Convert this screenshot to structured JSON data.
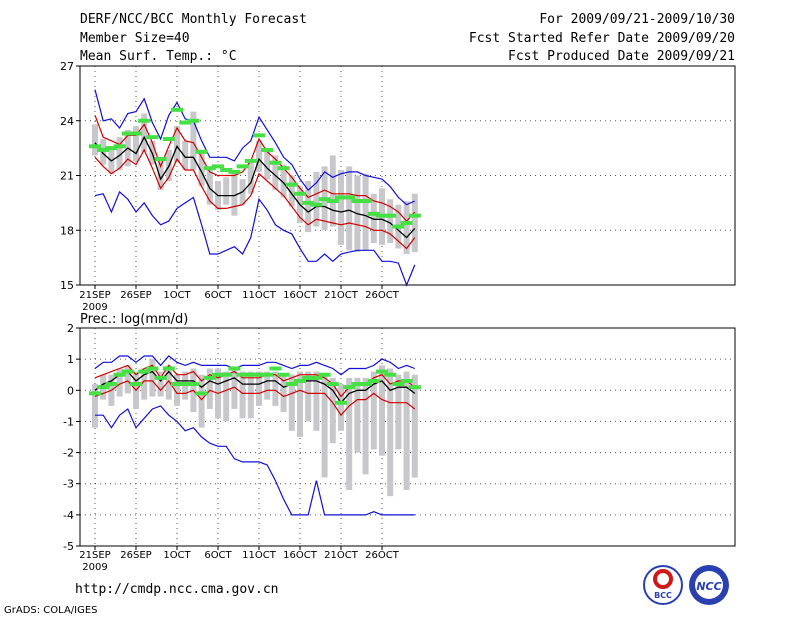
{
  "header": {
    "title": "DERF/NCC/BCC Monthly Forecast",
    "member_size": "Member Size=40",
    "variable": "Mean Surf. Temp.: °C",
    "period": "For 2009/09/21-2009/10/30",
    "fcst_started": "Fcst Started Refer Date 2009/09/20",
    "fcst_produced": "Fcst Produced Date 2009/09/21"
  },
  "footer": {
    "url": "http://cmdp.ncc.cma.gov.cn",
    "grads": "GrADS: COLA/IGES",
    "logo1_text": "BCC",
    "logo2_text": "NCC"
  },
  "colors": {
    "box": "#c8c8cc",
    "median": "#44e044",
    "envelope": "#1010d8",
    "spread": "#d00000",
    "mean": "#000000"
  },
  "chart_data": [
    {
      "type": "line",
      "title": "Mean Surf. Temp.: °C",
      "ylim": [
        15,
        27
      ],
      "yticks": [
        15,
        18,
        21,
        24,
        27
      ],
      "ytick_labels": [
        "15",
        "18",
        "21",
        "24",
        "27"
      ],
      "xtick_labels": [
        "21SEP",
        "26SEP",
        "1OCT",
        "6OCT",
        "11OCT",
        "16OCT",
        "21OCT",
        "26OCT"
      ],
      "xtick_days": [
        0,
        5,
        10,
        15,
        20,
        25,
        30,
        35
      ],
      "x_sublabel": "2009",
      "days": 40,
      "series": [
        {
          "name": "ensemble max",
          "values": [
            25.7,
            24.0,
            24.1,
            23.6,
            24.4,
            24.5,
            25.2,
            23.9,
            23.0,
            24.3,
            25.0,
            24.1,
            24.0,
            22.9,
            22.0,
            22.0,
            22.0,
            21.8,
            22.5,
            22.9,
            24.2,
            23.5,
            22.8,
            22.0,
            21.6,
            20.8,
            20.2,
            20.6,
            21.2,
            20.9,
            21.1,
            21.2,
            21.2,
            21.0,
            20.9,
            20.8,
            20.4,
            19.8,
            19.4,
            19.6
          ]
        },
        {
          "name": "upper spread",
          "values": [
            24.3,
            23.1,
            22.9,
            22.7,
            23.2,
            23.2,
            23.8,
            22.8,
            21.5,
            22.6,
            23.6,
            22.9,
            22.8,
            22.0,
            21.2,
            21.0,
            21.0,
            21.0,
            21.2,
            21.8,
            23.0,
            22.3,
            21.9,
            21.4,
            20.9,
            20.3,
            19.8,
            20.0,
            20.2,
            20.0,
            20.0,
            20.0,
            19.9,
            19.9,
            19.6,
            19.5,
            19.3,
            19.0,
            18.5,
            19.0
          ]
        },
        {
          "name": "ensemble mean",
          "values": [
            22.8,
            22.2,
            21.8,
            22.1,
            22.5,
            22.2,
            23.1,
            22.2,
            20.8,
            21.5,
            22.6,
            22.0,
            22.0,
            21.2,
            20.3,
            19.9,
            19.9,
            19.9,
            20.1,
            20.6,
            21.9,
            21.4,
            21.0,
            20.6,
            20.0,
            19.4,
            19.0,
            19.3,
            19.3,
            19.1,
            19.0,
            19.1,
            18.9,
            18.8,
            18.6,
            18.6,
            18.4,
            18.0,
            17.6,
            18.1
          ]
        },
        {
          "name": "lower spread",
          "values": [
            22.0,
            21.5,
            21.1,
            21.4,
            21.9,
            21.6,
            22.4,
            21.4,
            20.3,
            20.9,
            21.9,
            21.3,
            21.3,
            20.4,
            19.6,
            19.2,
            19.2,
            19.3,
            19.4,
            19.9,
            21.1,
            20.7,
            20.3,
            19.9,
            19.3,
            18.7,
            18.3,
            18.6,
            18.5,
            18.4,
            18.3,
            18.4,
            18.3,
            18.2,
            18.0,
            18.0,
            17.8,
            17.4,
            17.0,
            17.6
          ]
        },
        {
          "name": "ensemble min",
          "values": [
            19.9,
            20.0,
            19.0,
            20.1,
            19.7,
            19.0,
            19.5,
            18.8,
            18.3,
            18.5,
            19.2,
            19.5,
            19.8,
            18.3,
            16.7,
            16.7,
            16.9,
            17.1,
            16.7,
            17.6,
            19.7,
            19.1,
            18.3,
            18.0,
            17.8,
            17.0,
            16.3,
            16.3,
            16.7,
            16.3,
            16.7,
            16.8,
            16.9,
            16.9,
            16.9,
            16.3,
            16.3,
            16.2,
            15.0,
            16.1
          ]
        },
        {
          "name": "median",
          "values": [
            22.6,
            22.4,
            22.5,
            22.6,
            23.3,
            23.3,
            24.0,
            23.1,
            21.9,
            23.0,
            24.6,
            23.9,
            24.0,
            22.3,
            21.4,
            21.5,
            21.3,
            21.2,
            21.5,
            21.8,
            23.2,
            22.4,
            21.7,
            21.4,
            20.5,
            20.0,
            19.5,
            19.4,
            19.7,
            19.6,
            19.8,
            19.8,
            19.6,
            19.6,
            18.9,
            18.8,
            18.8,
            18.2,
            18.4,
            18.8
          ]
        },
        {
          "name": "box top",
          "values": [
            23.8,
            23.0,
            22.6,
            23.1,
            23.5,
            23.7,
            24.4,
            22.9,
            21.8,
            22.4,
            23.7,
            22.9,
            24.5,
            22.3,
            21.3,
            20.7,
            20.9,
            21.2,
            20.8,
            21.9,
            22.9,
            22.5,
            22.1,
            21.6,
            21.0,
            20.4,
            20.7,
            21.2,
            21.5,
            22.1,
            21.3,
            21.5,
            21.0,
            21.1,
            20.0,
            20.3,
            19.7,
            19.4,
            19.6,
            20.0
          ]
        },
        {
          "name": "box bottom",
          "values": [
            22.1,
            21.6,
            21.1,
            21.3,
            21.5,
            21.8,
            22.3,
            21.6,
            20.2,
            20.7,
            21.7,
            21.3,
            21.3,
            20.4,
            19.4,
            19.1,
            19.4,
            18.8,
            19.4,
            20.0,
            21.2,
            20.8,
            20.2,
            19.8,
            19.3,
            18.4,
            17.9,
            18.2,
            18.0,
            18.2,
            17.2,
            16.9,
            16.8,
            16.9,
            17.3,
            17.2,
            17.3,
            17.0,
            16.7,
            16.8
          ]
        }
      ]
    },
    {
      "type": "line",
      "title": "Prec.: log(mm/d)",
      "ylim": [
        -5,
        2
      ],
      "yticks": [
        -5,
        -4,
        -3,
        -2,
        -1,
        0,
        1,
        2
      ],
      "ytick_labels": [
        "-5",
        "-4",
        "-3",
        "-2",
        "-1",
        "0",
        "1",
        "2"
      ],
      "xtick_labels": [
        "21SEP",
        "26SEP",
        "1OCT",
        "6OCT",
        "11OCT",
        "16OCT",
        "21OCT",
        "26OCT"
      ],
      "xtick_days": [
        0,
        5,
        10,
        15,
        20,
        25,
        30,
        35
      ],
      "x_sublabel": "2009",
      "days": 40,
      "series": [
        {
          "name": "ensemble max",
          "values": [
            0.7,
            0.9,
            0.9,
            1.1,
            1.1,
            0.9,
            1.1,
            1.1,
            0.8,
            1.1,
            0.9,
            0.8,
            0.9,
            0.8,
            0.8,
            0.8,
            0.8,
            0.7,
            0.8,
            0.8,
            0.8,
            0.9,
            0.9,
            0.8,
            0.7,
            0.8,
            0.8,
            0.9,
            0.8,
            0.7,
            0.5,
            0.7,
            0.7,
            0.7,
            0.8,
            1.0,
            0.9,
            0.7,
            0.8,
            0.7
          ]
        },
        {
          "name": "upper spread",
          "values": [
            0.4,
            0.5,
            0.6,
            0.7,
            0.8,
            0.5,
            0.7,
            0.8,
            0.4,
            0.8,
            0.5,
            0.5,
            0.6,
            0.3,
            0.5,
            0.4,
            0.5,
            0.6,
            0.4,
            0.4,
            0.4,
            0.5,
            0.5,
            0.3,
            0.4,
            0.5,
            0.5,
            0.5,
            0.4,
            0.2,
            -0.2,
            0.1,
            0.2,
            0.2,
            0.4,
            0.5,
            0.2,
            0.3,
            0.3,
            0.1
          ]
        },
        {
          "name": "ensemble mean",
          "values": [
            0.0,
            0.2,
            0.3,
            0.5,
            0.6,
            0.3,
            0.5,
            0.6,
            0.3,
            0.6,
            0.3,
            0.3,
            0.3,
            0.1,
            0.3,
            0.2,
            0.3,
            0.4,
            0.2,
            0.2,
            0.2,
            0.3,
            0.3,
            0.1,
            0.2,
            0.3,
            0.3,
            0.3,
            0.2,
            0.0,
            -0.4,
            -0.1,
            0.0,
            0.0,
            0.2,
            0.3,
            0.0,
            0.1,
            0.1,
            -0.1
          ]
        },
        {
          "name": "lower spread",
          "values": [
            -0.2,
            -0.1,
            0.0,
            0.2,
            0.3,
            0.0,
            0.3,
            0.3,
            0.0,
            0.3,
            -0.1,
            -0.1,
            0.0,
            -0.3,
            0.0,
            -0.1,
            0.0,
            0.1,
            -0.1,
            -0.1,
            -0.1,
            0.0,
            0.0,
            -0.2,
            -0.1,
            0.0,
            -0.1,
            -0.1,
            -0.1,
            -0.4,
            -0.8,
            -0.5,
            -0.3,
            -0.3,
            -0.1,
            -0.3,
            -0.4,
            -0.4,
            -0.4,
            -0.6
          ]
        },
        {
          "name": "ensemble min",
          "values": [
            -0.8,
            -0.8,
            -1.2,
            -0.8,
            -0.6,
            -1.2,
            -0.9,
            -0.6,
            -0.5,
            -0.8,
            -1.0,
            -1.3,
            -1.2,
            -1.5,
            -1.7,
            -1.8,
            -1.8,
            -2.2,
            -2.3,
            -2.3,
            -2.3,
            -2.4,
            -2.9,
            -3.5,
            -4.0,
            -4.0,
            -4.0,
            -2.9,
            -4.0,
            -4.0,
            -4.0,
            -4.0,
            -4.0,
            -4.0,
            -3.9,
            -4.0,
            -4.0,
            -4.0,
            -4.0,
            -4.0
          ]
        },
        {
          "name": "median",
          "values": [
            -0.1,
            0.1,
            0.2,
            0.5,
            0.6,
            0.2,
            0.6,
            0.7,
            0.4,
            0.7,
            0.2,
            0.2,
            0.2,
            -0.1,
            0.4,
            0.5,
            0.5,
            0.7,
            0.5,
            0.5,
            0.5,
            0.5,
            0.7,
            0.5,
            0.2,
            0.3,
            0.4,
            0.4,
            0.5,
            0.2,
            -0.4,
            0.1,
            0.2,
            0.2,
            0.3,
            0.6,
            0.5,
            0.2,
            0.3,
            0.1
          ]
        },
        {
          "name": "box top",
          "values": [
            0.2,
            0.5,
            0.5,
            0.7,
            0.8,
            0.6,
            0.7,
            1.0,
            0.6,
            0.8,
            0.5,
            0.6,
            0.7,
            0.5,
            0.7,
            0.7,
            0.6,
            0.7,
            0.6,
            0.6,
            0.6,
            0.6,
            0.6,
            0.5,
            0.5,
            0.6,
            0.6,
            0.6,
            0.5,
            0.4,
            0.2,
            0.4,
            0.4,
            0.4,
            0.6,
            0.8,
            0.7,
            0.5,
            0.6,
            0.5
          ]
        },
        {
          "name": "box bottom",
          "values": [
            -1.2,
            -0.3,
            -0.5,
            -0.2,
            -0.1,
            -0.6,
            -0.3,
            -0.2,
            -0.2,
            -0.3,
            -0.5,
            -0.3,
            -0.7,
            -1.2,
            -0.6,
            -0.9,
            -1.0,
            -0.6,
            -0.9,
            -0.9,
            -0.5,
            -0.3,
            -0.5,
            -0.7,
            -1.3,
            -1.5,
            -1.0,
            -1.3,
            -2.8,
            -1.7,
            -1.3,
            -3.2,
            -2.0,
            -2.7,
            -1.9,
            -2.1,
            -3.4,
            -1.9,
            -3.2,
            -2.8
          ]
        }
      ]
    }
  ]
}
